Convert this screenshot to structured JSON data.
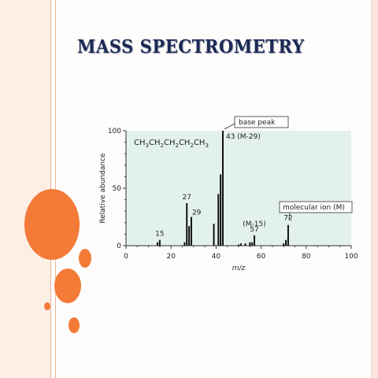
{
  "slide": {
    "title": "MASS SPECTROMETRY",
    "accent_color": "#f47a38"
  },
  "chart_data": {
    "type": "bar",
    "title": "",
    "xlabel": "m/z",
    "ylabel": "Relative abundance",
    "xlim": [
      0,
      100
    ],
    "ylim": [
      0,
      100
    ],
    "x_ticks": [
      0,
      20,
      40,
      60,
      80,
      100
    ],
    "y_ticks": [
      0,
      50,
      100
    ],
    "grid": false,
    "plot_background": "#e3f1ee",
    "bar_color": "#111111",
    "compound_label": "CH3CH2CH2CH2CH3",
    "peaks": [
      {
        "x": 14,
        "y": 3
      },
      {
        "x": 15,
        "y": 5
      },
      {
        "x": 26,
        "y": 3
      },
      {
        "x": 27,
        "y": 37
      },
      {
        "x": 28,
        "y": 17
      },
      {
        "x": 29,
        "y": 25
      },
      {
        "x": 39,
        "y": 19
      },
      {
        "x": 41,
        "y": 45
      },
      {
        "x": 42,
        "y": 62
      },
      {
        "x": 43,
        "y": 100
      },
      {
        "x": 50,
        "y": 1
      },
      {
        "x": 51,
        "y": 2
      },
      {
        "x": 53,
        "y": 2
      },
      {
        "x": 55,
        "y": 3
      },
      {
        "x": 56,
        "y": 3
      },
      {
        "x": 57,
        "y": 9
      },
      {
        "x": 70,
        "y": 2
      },
      {
        "x": 71,
        "y": 5
      },
      {
        "x": 72,
        "y": 18
      }
    ],
    "peak_labels": [
      {
        "x": 15,
        "y": 5,
        "text": "15"
      },
      {
        "x": 27,
        "y": 37,
        "text": "27"
      },
      {
        "x": 29,
        "y": 25,
        "text": "29"
      },
      {
        "x": 43,
        "y": 100,
        "text": "43 (M-29)"
      },
      {
        "x": 57,
        "y": 9,
        "text": "57"
      },
      {
        "x": 72,
        "y": 18,
        "text": "72"
      }
    ],
    "annotations": [
      {
        "text": "(M-15)",
        "target_x": 57
      },
      {
        "text": "base peak",
        "target_x": 43,
        "target_y": 100
      },
      {
        "text": "molecular ion (M)",
        "target_x": 72,
        "target_y": 18
      }
    ]
  }
}
